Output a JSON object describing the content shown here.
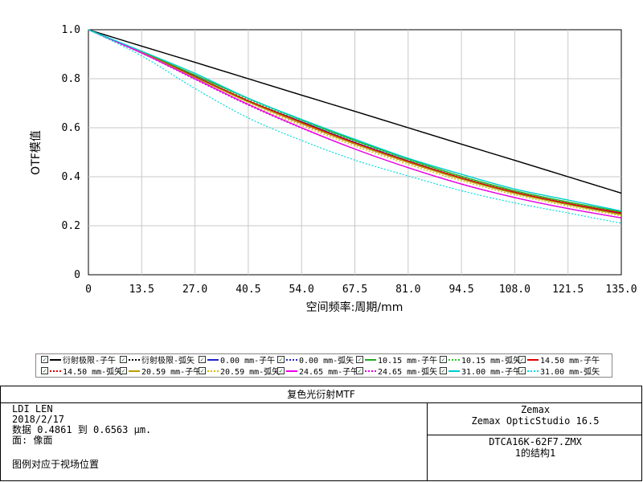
{
  "chart_data": {
    "type": "line",
    "title": "",
    "xlabel": "空间频率:周期/mm",
    "ylabel": "OTF模值",
    "xlim": [
      0,
      135.0
    ],
    "ylim": [
      0,
      1.0
    ],
    "x_ticks": [
      "0",
      "13.5",
      "27.0",
      "40.5",
      "54.0",
      "67.5",
      "81.0",
      "94.5",
      "108.0",
      "121.5",
      "135.0"
    ],
    "y_ticks": [
      "0",
      "0.2",
      "0.4",
      "0.6",
      "0.8",
      "1.0"
    ],
    "grid": true,
    "x": [
      0,
      13.5,
      27.0,
      40.5,
      54.0,
      67.5,
      81.0,
      94.5,
      108.0,
      121.5,
      135.0
    ],
    "series": [
      {
        "name": "衍射极限-子午",
        "color": "#000000",
        "dash": false,
        "values": [
          1.0,
          0.933,
          0.867,
          0.8,
          0.733,
          0.667,
          0.6,
          0.533,
          0.467,
          0.4,
          0.333
        ]
      },
      {
        "name": "衍射极限-弧矢",
        "color": "#000000",
        "dash": true,
        "values": [
          1.0,
          0.933,
          0.867,
          0.8,
          0.733,
          0.667,
          0.6,
          0.533,
          0.467,
          0.4,
          0.333
        ]
      },
      {
        "name": "0.00 mm-子午",
        "color": "#2222cc",
        "dash": false,
        "values": [
          1.0,
          0.91,
          0.81,
          0.71,
          0.625,
          0.54,
          0.465,
          0.395,
          0.335,
          0.29,
          0.25
        ]
      },
      {
        "name": "0.00 mm-弧矢",
        "color": "#2222cc",
        "dash": true,
        "values": [
          1.0,
          0.91,
          0.81,
          0.71,
          0.625,
          0.54,
          0.465,
          0.395,
          0.335,
          0.29,
          0.25
        ]
      },
      {
        "name": "10.15 mm-子午",
        "color": "#22aa22",
        "dash": false,
        "values": [
          1.0,
          0.91,
          0.815,
          0.72,
          0.632,
          0.548,
          0.472,
          0.402,
          0.343,
          0.297,
          0.257
        ]
      },
      {
        "name": "10.15 mm-弧矢",
        "color": "#22cc22",
        "dash": true,
        "values": [
          1.0,
          0.91,
          0.81,
          0.715,
          0.628,
          0.545,
          0.468,
          0.398,
          0.34,
          0.293,
          0.254
        ]
      },
      {
        "name": "14.50 mm-子午",
        "color": "#dd0000",
        "dash": false,
        "values": [
          1.0,
          0.908,
          0.808,
          0.71,
          0.622,
          0.538,
          0.463,
          0.395,
          0.337,
          0.291,
          0.252
        ]
      },
      {
        "name": "14.50 mm-弧矢",
        "color": "#dd0000",
        "dash": true,
        "values": [
          1.0,
          0.908,
          0.805,
          0.705,
          0.615,
          0.532,
          0.457,
          0.39,
          0.332,
          0.287,
          0.248
        ]
      },
      {
        "name": "20.59 mm-子午",
        "color": "#b8a000",
        "dash": false,
        "values": [
          1.0,
          0.907,
          0.805,
          0.705,
          0.617,
          0.533,
          0.458,
          0.39,
          0.332,
          0.286,
          0.245
        ]
      },
      {
        "name": "20.59 mm-弧矢",
        "color": "#d8b800",
        "dash": true,
        "values": [
          1.0,
          0.905,
          0.8,
          0.698,
          0.608,
          0.525,
          0.45,
          0.383,
          0.326,
          0.28,
          0.24
        ]
      },
      {
        "name": "24.65 mm-子午",
        "color": "#ee00ee",
        "dash": false,
        "values": [
          1.0,
          0.905,
          0.8,
          0.695,
          0.6,
          0.513,
          0.437,
          0.37,
          0.315,
          0.27,
          0.232
        ]
      },
      {
        "name": "24.65 mm-弧矢",
        "color": "#dd00dd",
        "dash": true,
        "values": [
          1.0,
          0.904,
          0.797,
          0.692,
          0.598,
          0.513,
          0.437,
          0.371,
          0.315,
          0.27,
          0.232
        ]
      },
      {
        "name": "31.00 mm-子午",
        "color": "#00cccc",
        "dash": false,
        "values": [
          1.0,
          0.912,
          0.822,
          0.72,
          0.634,
          0.553,
          0.475,
          0.41,
          0.35,
          0.305,
          0.26
        ]
      },
      {
        "name": "31.00 mm-弧矢",
        "color": "#00dddd",
        "dash": true,
        "values": [
          1.0,
          0.893,
          0.76,
          0.64,
          0.548,
          0.468,
          0.403,
          0.343,
          0.293,
          0.252,
          0.21
        ]
      }
    ]
  },
  "info": {
    "title": "复色光衍射MTF",
    "left_lines": [
      "LDI LEN",
      "2018/2/17",
      "数据 0.4861 到 0.6563 μm.",
      "面: 像面"
    ],
    "note": "图例对应于视场位置",
    "right_top": [
      "Zemax",
      "Zemax OpticStudio 16.5"
    ],
    "right_bottom": [
      "DTCA16K-62F7.ZMX",
      "1的结构1"
    ]
  },
  "legend_check": "✓"
}
